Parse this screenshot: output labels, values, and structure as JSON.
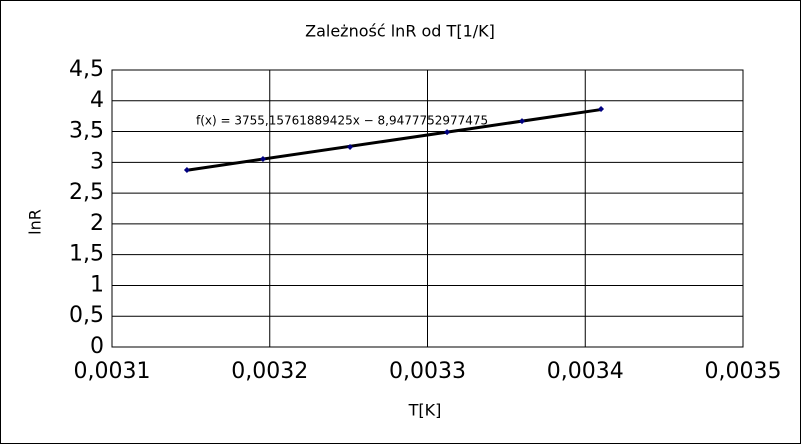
{
  "chart_data": {
    "type": "scatter",
    "title": "Zależność lnR od T[1/K]",
    "x_label": "T[K]",
    "y_label": "lnR",
    "series": [
      {
        "name": "lnR",
        "color": "#000080",
        "x": [
          0.0031475,
          0.0031957,
          0.0032509,
          0.0033124,
          0.0033599,
          0.00341
        ],
        "values": [
          2.875,
          3.054,
          3.249,
          3.49,
          3.67,
          3.866
        ]
      }
    ],
    "trendline": {
      "slope": 3755.15761889425,
      "intercept": -8.9477752977475,
      "color": "#000000",
      "label": "f(x) = 3755,15761889425x − 8,9477752977475"
    },
    "xlim": [
      0.0031,
      0.0035
    ],
    "xticks": [
      {
        "value": 0.0031,
        "label": "0,0031"
      },
      {
        "value": 0.0032,
        "label": "0,0032"
      },
      {
        "value": 0.0033,
        "label": "0,0033"
      },
      {
        "value": 0.0034,
        "label": "0,0034"
      },
      {
        "value": 0.0035,
        "label": "0,0035"
      }
    ],
    "ylim": [
      0,
      4.5
    ],
    "yticks": [
      0,
      {
        "value": 0.5,
        "label": "0,5"
      },
      1,
      {
        "value": 1.5,
        "label": "1,5"
      },
      2,
      {
        "value": 2.5,
        "label": "2,5"
      },
      3,
      {
        "value": 3.5,
        "label": "3,5"
      },
      4,
      {
        "value": 4.5,
        "label": "4,5"
      }
    ],
    "grid": true
  }
}
